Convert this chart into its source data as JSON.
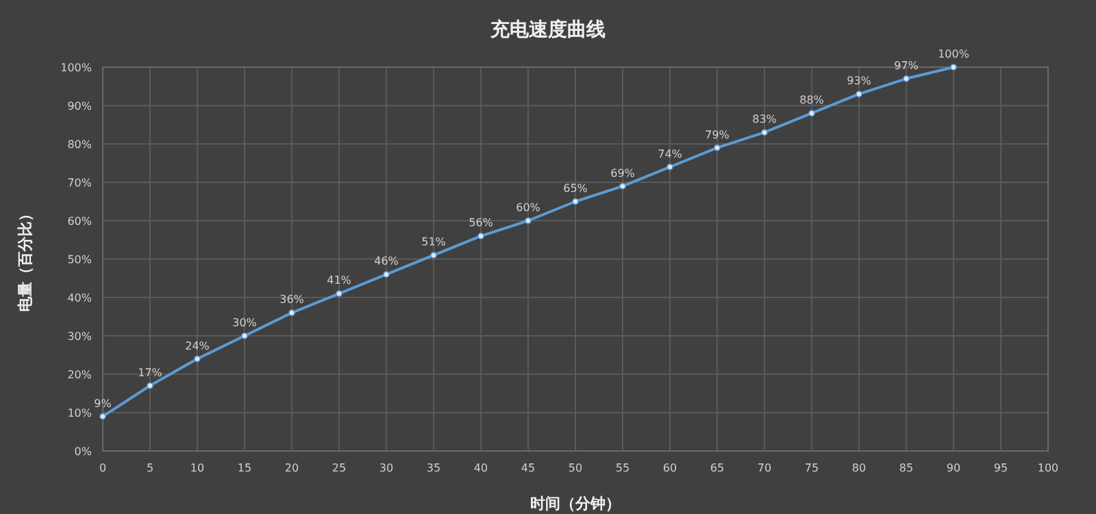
{
  "chart_data": {
    "type": "line",
    "title": "充电速度曲线",
    "xlabel": "时间（分钟）",
    "ylabel": "电量（百分比）",
    "x": [
      0,
      5,
      10,
      15,
      20,
      25,
      30,
      35,
      40,
      45,
      50,
      55,
      60,
      65,
      70,
      75,
      80,
      85,
      90
    ],
    "series": [
      {
        "color": "#5b9bd5",
        "values": [
          9,
          17,
          24,
          30,
          36,
          41,
          46,
          51,
          56,
          60,
          65,
          69,
          74,
          79,
          83,
          88,
          93,
          97,
          100
        ],
        "value_labels": [
          "9%",
          "17%",
          "24%",
          "30%",
          "36%",
          "41%",
          "46%",
          "51%",
          "56%",
          "60%",
          "65%",
          "69%",
          "74%",
          "79%",
          "83%",
          "88%",
          "93%",
          "97%",
          "100%"
        ]
      }
    ],
    "xlim": [
      0,
      100
    ],
    "xticks": [
      0,
      5,
      10,
      15,
      20,
      25,
      30,
      35,
      40,
      45,
      50,
      55,
      60,
      65,
      70,
      75,
      80,
      85,
      90,
      95,
      100
    ],
    "ylim": [
      0,
      100
    ],
    "yticks": [
      {
        "value": 0,
        "label": "0%"
      },
      {
        "value": 10,
        "label": "10%"
      },
      {
        "value": 20,
        "label": "20%"
      },
      {
        "value": 30,
        "label": "30%"
      },
      {
        "value": 40,
        "label": "40%"
      },
      {
        "value": 50,
        "label": "50%"
      },
      {
        "value": 60,
        "label": "60%"
      },
      {
        "value": 70,
        "label": "70%"
      },
      {
        "value": 80,
        "label": "80%"
      },
      {
        "value": 90,
        "label": "90%"
      },
      {
        "value": 100,
        "label": "100%"
      }
    ],
    "grid": true,
    "marker": "circle",
    "line_style": "solid"
  }
}
